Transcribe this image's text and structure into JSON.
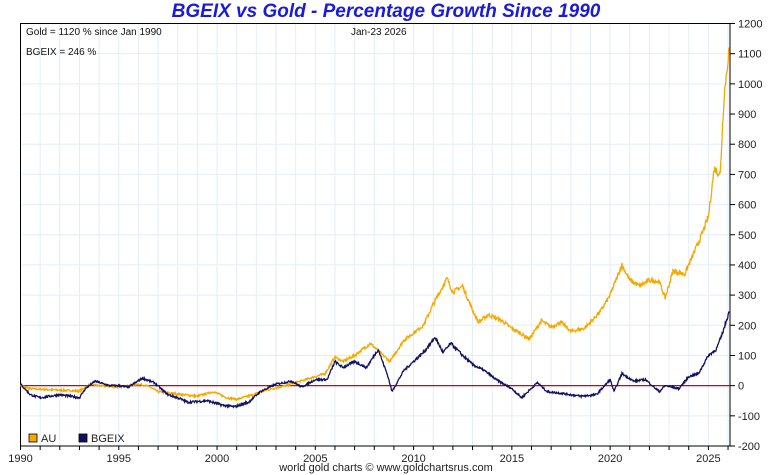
{
  "chart_data": {
    "type": "line",
    "title": "BGEIX vs Gold - Percentage Growth Since 1990",
    "annotations": {
      "gold_note": "Gold = 1120 % since Jan 1990",
      "date_note": "Jan-23  2026",
      "bgeix_note": "BGEIX = 246 %"
    },
    "footer": "world gold charts © www.goldchartsrus.com",
    "xlim": [
      1990,
      2026.1
    ],
    "ylim": [
      -200,
      1200
    ],
    "x_ticks": [
      "1990",
      "1995",
      "2000",
      "2005",
      "2010",
      "2015",
      "2020",
      "2025"
    ],
    "y_ticks": [
      "1200",
      "1100",
      "1000",
      "900",
      "800",
      "700",
      "600",
      "500",
      "400",
      "300",
      "200",
      "100",
      "0",
      "-100",
      "-200"
    ],
    "grid": true,
    "legend": {
      "placement": "bottom-left",
      "entries": [
        "AU",
        "BGEIX"
      ]
    },
    "colors": {
      "AU": "#f5a800",
      "BGEIX": "#101060",
      "zero": "#e00000",
      "grid": "#e4eef7",
      "title": "#1a1adb"
    },
    "series": [
      {
        "name": "AU",
        "x": [
          1990,
          1990.5,
          1991,
          1992,
          1993,
          1993.6,
          1994,
          1995,
          1996,
          1996.5,
          1997,
          1998,
          1999,
          1999.8,
          2000.5,
          2001,
          2001.6,
          2002.5,
          2003.5,
          2004.5,
          2005.5,
          2006,
          2006.4,
          2007,
          2007.8,
          2008.2,
          2008.8,
          2009.5,
          2010,
          2010.5,
          2011,
          2011.7,
          2012,
          2012.5,
          2013,
          2013.3,
          2013.8,
          2014.5,
          2015,
          2015.9,
          2016.5,
          2017,
          2017.5,
          2018,
          2018.7,
          2019.5,
          2020,
          2020.6,
          2021,
          2021.5,
          2022,
          2022.5,
          2022.8,
          2023.2,
          2023.8,
          2024,
          2024.6,
          2025,
          2025.3,
          2025.6,
          2025.8,
          2026.06
        ],
        "values": [
          0,
          -10,
          -12,
          -15,
          -18,
          5,
          0,
          -5,
          5,
          -2,
          -20,
          -28,
          -35,
          -20,
          -40,
          -45,
          -35,
          -15,
          0,
          20,
          40,
          95,
          80,
          100,
          140,
          115,
          80,
          150,
          175,
          200,
          270,
          355,
          310,
          330,
          250,
          210,
          235,
          215,
          190,
          155,
          215,
          195,
          210,
          180,
          190,
          245,
          300,
          400,
          350,
          330,
          350,
          345,
          290,
          380,
          370,
          400,
          490,
          560,
          720,
          700,
          960,
          1120
        ]
      },
      {
        "name": "BGEIX",
        "x": [
          1990,
          1990.5,
          1991,
          1992,
          1993,
          1993.3,
          1993.8,
          1994.5,
          1995,
          1995.5,
          1996.2,
          1996.8,
          1997.5,
          1998,
          1998.5,
          1999.5,
          2000.3,
          2000.9,
          2001.6,
          2002.2,
          2003,
          2003.8,
          2004.3,
          2005,
          2005.6,
          2006,
          2006.4,
          2007,
          2007.6,
          2008.2,
          2008.7,
          2008.9,
          2009.5,
          2010,
          2010.5,
          2011.1,
          2011.5,
          2011.9,
          2012.5,
          2013,
          2013.6,
          2014.2,
          2015,
          2015.5,
          2016.3,
          2016.8,
          2017.5,
          2018.5,
          2019.3,
          2020,
          2020.2,
          2020.6,
          2021.2,
          2021.8,
          2022.5,
          2022.8,
          2023.5,
          2024,
          2024.5,
          2025,
          2025.4,
          2025.7,
          2026.06
        ],
        "values": [
          5,
          -30,
          -40,
          -30,
          -40,
          -10,
          15,
          0,
          0,
          -5,
          25,
          10,
          -30,
          -40,
          -55,
          -50,
          -65,
          -70,
          -55,
          -20,
          5,
          15,
          -5,
          20,
          20,
          80,
          60,
          80,
          60,
          120,
          30,
          -20,
          50,
          80,
          110,
          160,
          110,
          140,
          100,
          70,
          50,
          20,
          -10,
          -40,
          10,
          -20,
          -25,
          -35,
          -30,
          20,
          -20,
          40,
          15,
          20,
          -20,
          0,
          -10,
          30,
          40,
          100,
          120,
          170,
          246
        ]
      }
    ]
  }
}
